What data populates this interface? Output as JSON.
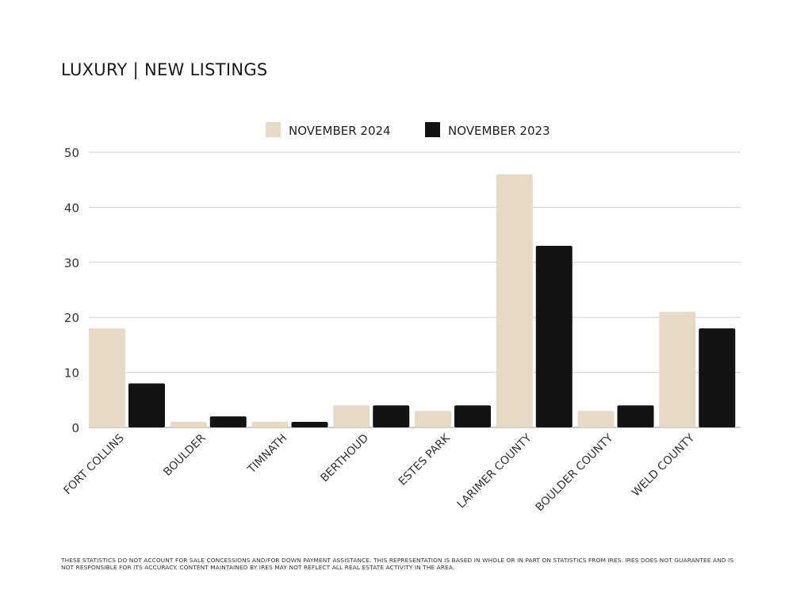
{
  "title": "LUXURY | NEW LISTINGS",
  "footnote": "THESE STATISTICS DO NOT ACCOUNT FOR SALE CONCESSIONS AND/FOR DOWN PAYMENT ASSISTANCE. THIS REPRESENTATION IS BASED IN WHOLE OR IN PART ON STATISTICS FROM IRES. IRES DOES NOT GUARANTEE AND IS NOT RESPONSIBLE FOR ITS ACCURACY. CONTENT MAINTAINED BY IRES MAY NOT REFLECT ALL REAL ESTATE ACTIVITY IN THE AREA.",
  "chart_data": {
    "type": "bar",
    "categories": [
      "FORT COLLINS",
      "BOULDER",
      "TIMNATH",
      "BERTHOUD",
      "ESTES PARK",
      "LARIMER COUNTY",
      "BOULDER COUNTY",
      "WELD COUNTY"
    ],
    "series": [
      {
        "name": "NOVEMBER 2024",
        "color": "#e6dac6",
        "values": [
          18,
          1,
          1,
          4,
          3,
          46,
          3,
          21
        ]
      },
      {
        "name": "NOVEMBER 2023",
        "color": "#141314",
        "values": [
          8,
          2,
          1,
          4,
          4,
          33,
          4,
          18
        ]
      }
    ],
    "ylim": [
      0,
      50
    ],
    "yticks": [
      0,
      10,
      20,
      30,
      40,
      50
    ],
    "grid": true,
    "legend_position": "top-center"
  }
}
